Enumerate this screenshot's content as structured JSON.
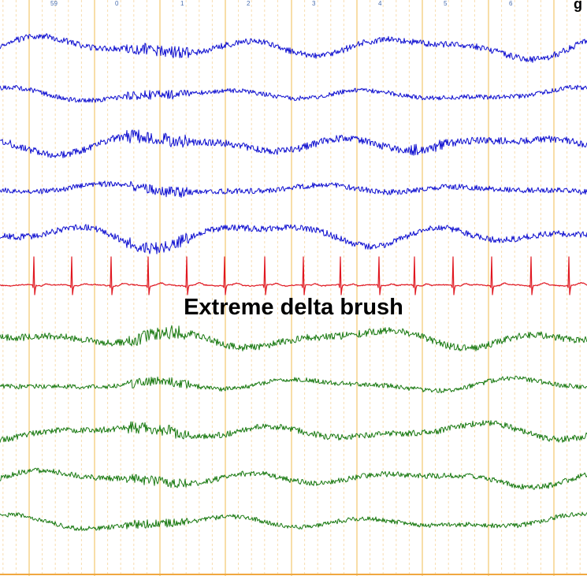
{
  "figure": {
    "caption": "Extreme delta brush",
    "corner_glyph": "g",
    "time_labels": [
      "59",
      "0",
      "1",
      "2",
      "3",
      "4",
      "5",
      "6"
    ]
  },
  "colors": {
    "background": "#ffffff",
    "major_grid": "#f2c96e",
    "minor_grid": "#f7ddb0",
    "upper_channels": "#1010d0",
    "ecg_channel": "#e0161f",
    "lower_channels": "#1a7a12",
    "baseline": "#f0a840"
  },
  "channels": [
    {
      "group": "upper",
      "color": "blue",
      "icon": "eeg-trace"
    },
    {
      "group": "upper",
      "color": "blue",
      "icon": "eeg-trace"
    },
    {
      "group": "upper",
      "color": "blue",
      "icon": "eeg-trace"
    },
    {
      "group": "upper",
      "color": "blue",
      "icon": "eeg-trace"
    },
    {
      "group": "upper",
      "color": "blue",
      "icon": "eeg-trace"
    },
    {
      "group": "ecg",
      "color": "red",
      "icon": "ecg-trace"
    },
    {
      "group": "lower",
      "color": "green",
      "icon": "eeg-trace"
    },
    {
      "group": "lower",
      "color": "green",
      "icon": "eeg-trace"
    },
    {
      "group": "lower",
      "color": "green",
      "icon": "eeg-trace"
    },
    {
      "group": "lower",
      "color": "green",
      "icon": "eeg-trace"
    },
    {
      "group": "lower",
      "color": "green",
      "icon": "eeg-trace"
    }
  ]
}
